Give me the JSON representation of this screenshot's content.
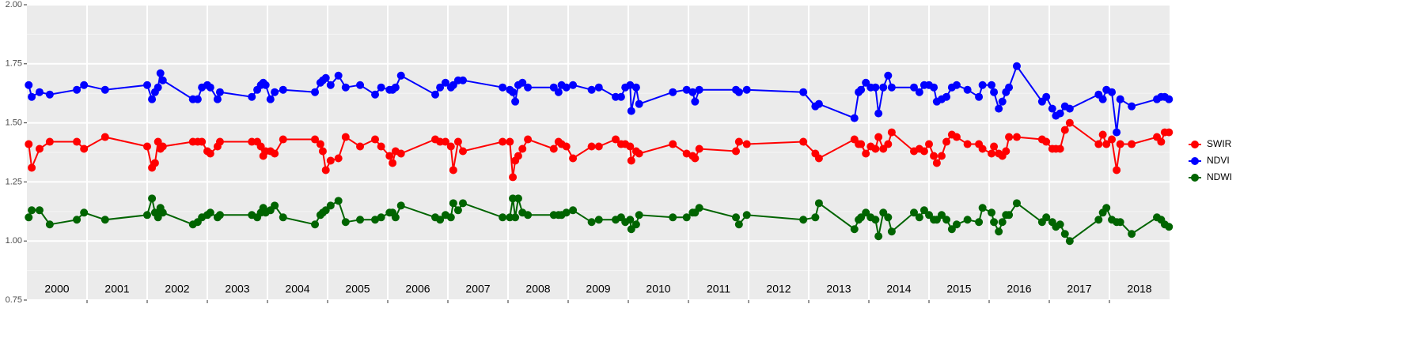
{
  "chart_data": {
    "type": "line",
    "x": [
      2000.03,
      2000.08,
      2000.21,
      2000.38,
      2000.83,
      2000.95,
      2001.3,
      2002.0,
      2002.08,
      2002.13,
      2002.18,
      2002.22,
      2002.26,
      2002.76,
      2002.84,
      2002.91,
      2003.0,
      2003.05,
      2003.17,
      2003.21,
      2003.74,
      2003.83,
      2003.89,
      2003.93,
      2003.97,
      2004.05,
      2004.12,
      2004.26,
      2004.79,
      2004.88,
      2004.92,
      2004.97,
      2005.05,
      2005.18,
      2005.3,
      2005.54,
      2005.79,
      2005.89,
      2006.03,
      2006.08,
      2006.13,
      2006.22,
      2006.79,
      2006.87,
      2006.96,
      2007.05,
      2007.09,
      2007.17,
      2007.25,
      2007.91,
      2008.03,
      2008.08,
      2008.12,
      2008.17,
      2008.24,
      2008.33,
      2008.76,
      2008.84,
      2008.89,
      2008.97,
      2009.08,
      2009.39,
      2009.51,
      2009.79,
      2009.88,
      2009.95,
      2010.03,
      2010.05,
      2010.13,
      2010.18,
      2010.74,
      2010.97,
      2011.07,
      2011.11,
      2011.18,
      2011.79,
      2011.84,
      2011.97,
      2012.91,
      2013.11,
      2013.17,
      2013.76,
      2013.83,
      2013.87,
      2013.95,
      2014.03,
      2014.11,
      2014.16,
      2014.24,
      2014.32,
      2014.38,
      2014.75,
      2014.84,
      2014.92,
      2015.0,
      2015.08,
      2015.13,
      2015.21,
      2015.29,
      2015.38,
      2015.46,
      2015.64,
      2015.83,
      2015.89,
      2016.04,
      2016.08,
      2016.16,
      2016.22,
      2016.28,
      2016.33,
      2016.46,
      2016.88,
      2016.95,
      2017.05,
      2017.11,
      2017.18,
      2017.26,
      2017.34,
      2017.82,
      2017.89,
      2017.95,
      2018.04,
      2018.12,
      2018.18,
      2018.37,
      2018.79,
      2018.86,
      2018.92,
      2018.99
    ],
    "series": [
      {
        "name": "SWIR",
        "color": "#ff0000",
        "values": [
          1.41,
          1.31,
          1.39,
          1.42,
          1.42,
          1.39,
          1.44,
          1.4,
          1.31,
          1.33,
          1.42,
          1.39,
          1.4,
          1.42,
          1.42,
          1.42,
          1.38,
          1.37,
          1.4,
          1.42,
          1.42,
          1.42,
          1.4,
          1.36,
          1.38,
          1.38,
          1.37,
          1.43,
          1.43,
          1.41,
          1.38,
          1.3,
          1.34,
          1.35,
          1.44,
          1.4,
          1.43,
          1.4,
          1.36,
          1.33,
          1.38,
          1.37,
          1.43,
          1.42,
          1.42,
          1.4,
          1.3,
          1.42,
          1.38,
          1.42,
          1.42,
          1.27,
          1.34,
          1.36,
          1.39,
          1.43,
          1.39,
          1.42,
          1.41,
          1.4,
          1.35,
          1.4,
          1.4,
          1.43,
          1.41,
          1.41,
          1.4,
          1.34,
          1.38,
          1.37,
          1.41,
          1.37,
          1.36,
          1.35,
          1.39,
          1.38,
          1.42,
          1.41,
          1.42,
          1.37,
          1.35,
          1.43,
          1.41,
          1.41,
          1.37,
          1.4,
          1.39,
          1.44,
          1.39,
          1.41,
          1.46,
          1.38,
          1.39,
          1.38,
          1.41,
          1.36,
          1.33,
          1.36,
          1.42,
          1.45,
          1.44,
          1.41,
          1.41,
          1.39,
          1.37,
          1.4,
          1.37,
          1.36,
          1.38,
          1.44,
          1.44,
          1.43,
          1.42,
          1.39,
          1.39,
          1.39,
          1.47,
          1.5,
          1.41,
          1.45,
          1.41,
          1.43,
          1.3,
          1.41,
          1.41,
          1.44,
          1.42,
          1.46,
          1.46
        ]
      },
      {
        "name": "NDVI",
        "color": "#0000ff",
        "values": [
          1.66,
          1.61,
          1.63,
          1.62,
          1.64,
          1.66,
          1.64,
          1.66,
          1.6,
          1.63,
          1.65,
          1.71,
          1.68,
          1.6,
          1.6,
          1.65,
          1.66,
          1.65,
          1.6,
          1.63,
          1.61,
          1.64,
          1.66,
          1.67,
          1.66,
          1.6,
          1.63,
          1.64,
          1.63,
          1.67,
          1.68,
          1.69,
          1.66,
          1.7,
          1.65,
          1.66,
          1.62,
          1.65,
          1.64,
          1.64,
          1.65,
          1.7,
          1.62,
          1.65,
          1.67,
          1.65,
          1.66,
          1.68,
          1.68,
          1.65,
          1.64,
          1.63,
          1.59,
          1.66,
          1.67,
          1.65,
          1.65,
          1.63,
          1.66,
          1.65,
          1.66,
          1.64,
          1.65,
          1.61,
          1.61,
          1.65,
          1.66,
          1.55,
          1.65,
          1.58,
          1.63,
          1.64,
          1.63,
          1.59,
          1.64,
          1.64,
          1.63,
          1.64,
          1.63,
          1.57,
          1.58,
          1.52,
          1.63,
          1.64,
          1.67,
          1.65,
          1.65,
          1.54,
          1.65,
          1.7,
          1.65,
          1.65,
          1.63,
          1.66,
          1.66,
          1.65,
          1.59,
          1.6,
          1.61,
          1.65,
          1.66,
          1.64,
          1.61,
          1.66,
          1.66,
          1.63,
          1.56,
          1.59,
          1.63,
          1.65,
          1.74,
          1.59,
          1.61,
          1.56,
          1.53,
          1.54,
          1.57,
          1.56,
          1.62,
          1.6,
          1.64,
          1.63,
          1.46,
          1.6,
          1.57,
          1.6,
          1.61,
          1.61,
          1.6
        ]
      },
      {
        "name": "NDWI",
        "color": "#006400",
        "values": [
          1.1,
          1.13,
          1.13,
          1.07,
          1.09,
          1.12,
          1.09,
          1.11,
          1.18,
          1.12,
          1.1,
          1.14,
          1.12,
          1.07,
          1.08,
          1.1,
          1.11,
          1.12,
          1.1,
          1.11,
          1.11,
          1.1,
          1.12,
          1.14,
          1.12,
          1.13,
          1.15,
          1.1,
          1.07,
          1.11,
          1.12,
          1.13,
          1.15,
          1.17,
          1.08,
          1.09,
          1.09,
          1.1,
          1.12,
          1.12,
          1.1,
          1.15,
          1.1,
          1.09,
          1.11,
          1.1,
          1.16,
          1.13,
          1.16,
          1.1,
          1.1,
          1.18,
          1.1,
          1.18,
          1.12,
          1.11,
          1.11,
          1.11,
          1.11,
          1.12,
          1.13,
          1.08,
          1.09,
          1.09,
          1.1,
          1.08,
          1.09,
          1.05,
          1.07,
          1.11,
          1.1,
          1.1,
          1.12,
          1.12,
          1.14,
          1.1,
          1.07,
          1.11,
          1.09,
          1.1,
          1.16,
          1.05,
          1.09,
          1.1,
          1.12,
          1.1,
          1.09,
          1.02,
          1.12,
          1.1,
          1.04,
          1.12,
          1.1,
          1.13,
          1.11,
          1.09,
          1.09,
          1.11,
          1.09,
          1.05,
          1.07,
          1.09,
          1.08,
          1.14,
          1.12,
          1.08,
          1.04,
          1.08,
          1.11,
          1.11,
          1.16,
          1.08,
          1.1,
          1.08,
          1.06,
          1.07,
          1.03,
          1.0,
          1.09,
          1.12,
          1.14,
          1.09,
          1.08,
          1.08,
          1.03,
          1.1,
          1.09,
          1.07,
          1.06
        ]
      }
    ],
    "xlim": [
      2000,
      2019
    ],
    "xticks": [
      2001,
      2002,
      2003,
      2004,
      2005,
      2006,
      2007,
      2008,
      2009,
      2010,
      2011,
      2012,
      2013,
      2014,
      2015,
      2016,
      2017,
      2018
    ],
    "year_labels": [
      {
        "value": 2000.5,
        "label": "2000"
      },
      {
        "value": 2001.5,
        "label": "2001"
      },
      {
        "value": 2002.5,
        "label": "2002"
      },
      {
        "value": 2003.5,
        "label": "2003"
      },
      {
        "value": 2004.5,
        "label": "2004"
      },
      {
        "value": 2005.5,
        "label": "2005"
      },
      {
        "value": 2006.5,
        "label": "2006"
      },
      {
        "value": 2007.5,
        "label": "2007"
      },
      {
        "value": 2008.5,
        "label": "2008"
      },
      {
        "value": 2009.5,
        "label": "2009"
      },
      {
        "value": 2010.5,
        "label": "2010"
      },
      {
        "value": 2011.5,
        "label": "2011"
      },
      {
        "value": 2012.5,
        "label": "2012"
      },
      {
        "value": 2013.5,
        "label": "2013"
      },
      {
        "value": 2014.5,
        "label": "2014"
      },
      {
        "value": 2015.5,
        "label": "2015"
      },
      {
        "value": 2016.5,
        "label": "2016"
      },
      {
        "value": 2017.5,
        "label": "2017"
      },
      {
        "value": 2018.5,
        "label": "2018"
      }
    ],
    "ylim": [
      0.75,
      2.0
    ],
    "yticks": [
      0.75,
      {
        "value": 1.0,
        "label": "1.00"
      },
      1.25,
      {
        "value": 1.5,
        "label": "1.50"
      },
      1.75,
      {
        "value": 2.0,
        "label": "2.00"
      }
    ],
    "yminor": [
      0.875,
      1.125,
      1.375,
      1.625,
      1.875
    ],
    "grid": true,
    "legend": "right"
  }
}
